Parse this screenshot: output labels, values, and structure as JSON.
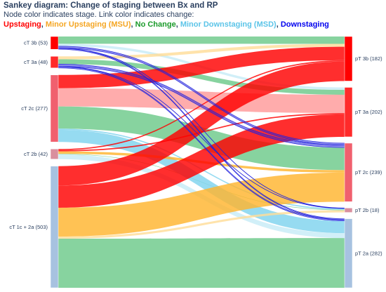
{
  "title": "Sankey diagram: Change of staging between Bx and RP",
  "subtitle": "Node color indicates stage. Link color indicates change:",
  "legend": [
    {
      "label": "Upstaging",
      "color": "#ff0000"
    },
    {
      "label": ", ",
      "color": "#2a3f5f"
    },
    {
      "label": "Minor Upstaging (MSU)",
      "color": "#f5a623"
    },
    {
      "label": ", ",
      "color": "#2a3f5f"
    },
    {
      "label": "No Change",
      "color": "#1a9a2a"
    },
    {
      "label": ", ",
      "color": "#2a3f5f"
    },
    {
      "label": "Minor Downstaging (MSD)",
      "color": "#5bc4e8"
    },
    {
      "label": ", ",
      "color": "#2a3f5f"
    },
    {
      "label": "Downstaging",
      "color": "#0000ee"
    }
  ],
  "colors": {
    "upstaging": "#ff0000",
    "msu": "#ffb42e",
    "nochange": "#6cc98a",
    "msd": "#7fd3ee",
    "downstaging": "#2222dd",
    "upstaging_light": "#ff9a9a",
    "msu_light": "#ffdd99",
    "nochange_light": "#b7e3c5",
    "msd_light": "#c7ebf7"
  },
  "chart_data": {
    "type": "sankey",
    "source_nodes": [
      {
        "id": "cT3b",
        "label": "cT 3b (53)",
        "count": 53,
        "color": "#ff0000"
      },
      {
        "id": "cT3a",
        "label": "cT 3a (48)",
        "count": 48,
        "color": "#ff2a2a"
      },
      {
        "id": "cT2c",
        "label": "cT 2c (277)",
        "count": 277,
        "color": "#f0606e"
      },
      {
        "id": "cT2b",
        "label": "cT 2b (42)",
        "count": 42,
        "color": "#d98f9e"
      },
      {
        "id": "cT12a",
        "label": "cT 1c + 2a (503)",
        "count": 503,
        "color": "#a7c2e0"
      }
    ],
    "target_nodes": [
      {
        "id": "pT3b",
        "label": "pT 3b (182)",
        "count": 182,
        "color": "#ff0000"
      },
      {
        "id": "pT3a",
        "label": "pT 3a (202)",
        "count": 202,
        "color": "#ff2a2a"
      },
      {
        "id": "pT2c",
        "label": "pT 2c (239)",
        "count": 239,
        "color": "#f0606e"
      },
      {
        "id": "pT2b",
        "label": "pT 2b (18)",
        "count": 18,
        "color": "#d98f9e"
      },
      {
        "id": "pT2a",
        "label": "pT 2a (282)",
        "count": 282,
        "color": "#a7c2e0"
      }
    ],
    "links": [
      {
        "source": "cT3b",
        "target": "pT3b",
        "value": 30,
        "kind": "nochange"
      },
      {
        "source": "cT3b",
        "target": "pT3a",
        "value": 10,
        "kind": "msd_light"
      },
      {
        "source": "cT3b",
        "target": "pT2c",
        "value": 8,
        "kind": "downstaging"
      },
      {
        "source": "cT3b",
        "target": "pT2b",
        "value": 1,
        "kind": "downstaging"
      },
      {
        "source": "cT3b",
        "target": "pT2a",
        "value": 4,
        "kind": "downstaging"
      },
      {
        "source": "cT3a",
        "target": "pT3b",
        "value": 12,
        "kind": "msu_light"
      },
      {
        "source": "cT3a",
        "target": "pT3a",
        "value": 20,
        "kind": "nochange"
      },
      {
        "source": "cT3a",
        "target": "pT2c",
        "value": 10,
        "kind": "downstaging"
      },
      {
        "source": "cT3a",
        "target": "pT2b",
        "value": 1,
        "kind": "downstaging"
      },
      {
        "source": "cT3a",
        "target": "pT2a",
        "value": 5,
        "kind": "downstaging"
      },
      {
        "source": "cT2c",
        "target": "pT3b",
        "value": 55,
        "kind": "upstaging"
      },
      {
        "source": "cT2c",
        "target": "pT3a",
        "value": 75,
        "kind": "upstaging_light"
      },
      {
        "source": "cT2c",
        "target": "pT2c",
        "value": 92,
        "kind": "nochange"
      },
      {
        "source": "cT2c",
        "target": "pT2b",
        "value": 5,
        "kind": "msd"
      },
      {
        "source": "cT2c",
        "target": "pT2a",
        "value": 50,
        "kind": "msd"
      },
      {
        "source": "cT2b",
        "target": "pT3b",
        "value": 5,
        "kind": "upstaging"
      },
      {
        "source": "cT2b",
        "target": "pT3a",
        "value": 5,
        "kind": "upstaging"
      },
      {
        "source": "cT2b",
        "target": "pT2c",
        "value": 10,
        "kind": "msu"
      },
      {
        "source": "cT2b",
        "target": "pT2b",
        "value": 2,
        "kind": "nochange"
      },
      {
        "source": "cT2b",
        "target": "pT2a",
        "value": 20,
        "kind": "msd_light"
      },
      {
        "source": "cT12a",
        "target": "pT3b",
        "value": 80,
        "kind": "upstaging"
      },
      {
        "source": "cT12a",
        "target": "pT3a",
        "value": 92,
        "kind": "upstaging"
      },
      {
        "source": "cT12a",
        "target": "pT2c",
        "value": 119,
        "kind": "msu"
      },
      {
        "source": "cT12a",
        "target": "pT2b",
        "value": 9,
        "kind": "msu_light"
      },
      {
        "source": "cT12a",
        "target": "pT2a",
        "value": 203,
        "kind": "nochange"
      }
    ]
  }
}
